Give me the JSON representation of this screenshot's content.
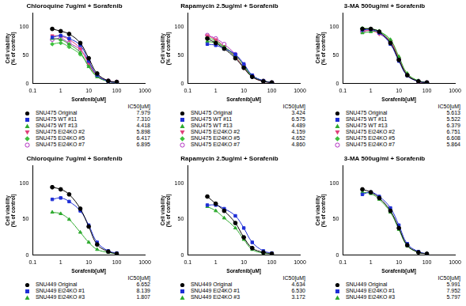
{
  "chart_data": [
    {
      "type": "line",
      "title": "Chloroquine 7ug/ml + Sorafenib",
      "x_label": "Sorafenib[uM]",
      "y_label": "Cell viability (% of control)",
      "log": "x",
      "grid": false,
      "legend": "bottom",
      "legend_title": "IC50[uM]",
      "line_style": "solid",
      "xlim": [
        0.1,
        1000
      ],
      "xticks": [
        0.1,
        1,
        10,
        100,
        1000
      ],
      "ylim": [
        0,
        125
      ],
      "yticks": [
        0,
        50,
        100
      ],
      "x": [
        0.5,
        1,
        2,
        5,
        10,
        20,
        50,
        100
      ],
      "series": [
        {
          "name": "SNU475 Original",
          "color": "#000000",
          "marker": "circle",
          "values": [
            97,
            93,
            88,
            72,
            45,
            18,
            5,
            3
          ],
          "ic50": 7.979
        },
        {
          "name": "SNU475 WT #11",
          "color": "#1f2fd6",
          "marker": "square",
          "values": [
            82,
            85,
            80,
            68,
            40,
            15,
            4,
            2
          ],
          "ic50": 7.31,
          "ic50_label": "7.310"
        },
        {
          "name": "SNU475 WT #13",
          "color": "#2eaa2e",
          "marker": "triangle",
          "values": [
            80,
            78,
            70,
            55,
            30,
            12,
            4,
            2
          ],
          "ic50": 4.418
        },
        {
          "name": "SNU475 Ei24KO #2",
          "color": "#e0407a",
          "marker": "triangle-down",
          "values": [
            85,
            84,
            78,
            62,
            35,
            14,
            4,
            2
          ],
          "ic50": 5.898
        },
        {
          "name": "SNU475 Ei24KO #5",
          "color": "#3cc03c",
          "marker": "diamond",
          "values": [
            70,
            72,
            65,
            52,
            32,
            13,
            4,
            2
          ],
          "ic50": 6.417
        },
        {
          "name": "SNU475 Ei24KO #7",
          "color": "#b030c0",
          "marker": "open-circle",
          "values": [
            78,
            80,
            72,
            60,
            38,
            15,
            5,
            3
          ],
          "ic50": 6.895
        }
      ]
    },
    {
      "type": "line",
      "title": "Rapamycin 2.5ug/ml + Sorafenib",
      "x_label": "Sorafenib[uM]",
      "y_label": "Cell viability (% of control)",
      "log": "x",
      "grid": false,
      "legend": "bottom",
      "legend_title": "IC50[uM]",
      "line_style": "solid",
      "xlim": [
        0.1,
        1000
      ],
      "xticks": [
        0.1,
        1,
        10,
        100,
        1000
      ],
      "ylim": [
        0,
        125
      ],
      "yticks": [
        0,
        50,
        100
      ],
      "x": [
        0.5,
        1,
        2,
        5,
        10,
        20,
        50,
        100
      ],
      "series": [
        {
          "name": "SNU475 Original",
          "color": "#000000",
          "marker": "circle",
          "values": [
            80,
            72,
            62,
            45,
            28,
            12,
            4,
            2
          ],
          "ic50": 3.424
        },
        {
          "name": "SNU475 WT #11",
          "color": "#1f2fd6",
          "marker": "square",
          "values": [
            70,
            68,
            62,
            52,
            35,
            15,
            5,
            2
          ],
          "ic50": 6.575
        },
        {
          "name": "SNU475 WT #13",
          "color": "#2eaa2e",
          "marker": "triangle",
          "values": [
            75,
            72,
            65,
            50,
            33,
            14,
            5,
            2
          ],
          "ic50": 4.489
        },
        {
          "name": "SNU475 Ei24KO #2",
          "color": "#e0407a",
          "marker": "triangle-down",
          "values": [
            85,
            78,
            66,
            48,
            28,
            12,
            4,
            2
          ],
          "ic50": 4.159
        },
        {
          "name": "SNU475 Ei24KO #5",
          "color": "#3cc03c",
          "marker": "diamond",
          "values": [
            82,
            76,
            65,
            47,
            30,
            13,
            5,
            2
          ],
          "ic50": 4.652
        },
        {
          "name": "SNU475 Ei24KO #7",
          "color": "#b030c0",
          "marker": "open-circle",
          "values": [
            86,
            80,
            70,
            52,
            33,
            14,
            5,
            2
          ],
          "ic50": 4.86,
          "ic50_label": "4.860"
        }
      ]
    },
    {
      "type": "line",
      "title": "3-MA 500ug/ml + Sorafenib",
      "x_label": "Sorafenib[uM]",
      "y_label": "Cell viability (% of control)",
      "log": "x",
      "grid": false,
      "legend": "bottom",
      "legend_title": "IC50[uM]",
      "line_style": "solid",
      "xlim": [
        0.1,
        1000
      ],
      "xticks": [
        0.1,
        1,
        10,
        100,
        1000
      ],
      "ylim": [
        0,
        125
      ],
      "yticks": [
        0,
        50,
        100
      ],
      "x": [
        0.5,
        1,
        2,
        5,
        10,
        20,
        50,
        100
      ],
      "series": [
        {
          "name": "SNU475 Original",
          "color": "#000000",
          "marker": "circle",
          "values": [
            97,
            97,
            92,
            72,
            42,
            15,
            4,
            2
          ],
          "ic50": 5.613
        },
        {
          "name": "SNU475 WT #11",
          "color": "#1f2fd6",
          "marker": "square",
          "values": [
            95,
            96,
            90,
            70,
            40,
            14,
            4,
            2
          ],
          "ic50": 5.522
        },
        {
          "name": "SNU475 WT #13",
          "color": "#2eaa2e",
          "marker": "triangle",
          "values": [
            90,
            92,
            92,
            78,
            48,
            18,
            5,
            2
          ],
          "ic50": 6.379
        },
        {
          "name": "SNU475 Ei24KO #2",
          "color": "#e0407a",
          "marker": "triangle-down",
          "values": [
            93,
            94,
            88,
            75,
            45,
            16,
            4,
            2
          ],
          "ic50": 6.751
        },
        {
          "name": "SNU475 Ei24KO #5",
          "color": "#3cc03c",
          "marker": "diamond",
          "values": [
            98,
            97,
            93,
            76,
            45,
            16,
            5,
            2
          ],
          "ic50": 6.608
        },
        {
          "name": "SNU475 Ei24KO #7",
          "color": "#b030c0",
          "marker": "open-circle",
          "values": [
            92,
            95,
            90,
            74,
            43,
            15,
            4,
            2
          ],
          "ic50": 5.864
        }
      ]
    },
    {
      "type": "line",
      "title": "Chloroquine 7ug/ml + Sorafenib",
      "x_label": "Sorafenib[uM]",
      "y_label": "Cell viability (% of control)",
      "log": "x",
      "grid": false,
      "legend": "bottom",
      "legend_title": "IC50[uM]",
      "line_style": "solid",
      "xlim": [
        0.1,
        1000
      ],
      "xticks": [
        0.1,
        1,
        10,
        100,
        1000
      ],
      "ylim": [
        0,
        125
      ],
      "yticks": [
        0,
        50,
        100
      ],
      "x": [
        0.5,
        1,
        2,
        5,
        10,
        20,
        50,
        100
      ],
      "series": [
        {
          "name": "SNU449 Original",
          "color": "#000000",
          "marker": "circle",
          "values": [
            95,
            92,
            85,
            65,
            40,
            15,
            5,
            2
          ],
          "ic50": 6.652
        },
        {
          "name": "SNU449 Ei24KO #1",
          "color": "#1f2fd6",
          "marker": "square",
          "values": [
            78,
            80,
            75,
            62,
            42,
            18,
            6,
            3
          ],
          "ic50": 8.139
        },
        {
          "name": "SNU449 Ei24KO #3",
          "color": "#2eaa2e",
          "marker": "triangle",
          "values": [
            60,
            58,
            50,
            32,
            18,
            8,
            4,
            2
          ],
          "ic50": 1.807
        }
      ]
    },
    {
      "type": "line",
      "title": "Rapamycin 2.5ug/ml + Sorafenib",
      "x_label": "Sorafenib[uM]",
      "y_label": "Cell viability (% of control)",
      "log": "x",
      "grid": false,
      "legend": "bottom",
      "legend_title": "IC50[uM]",
      "line_style": "solid",
      "xlim": [
        0.1,
        1000
      ],
      "xticks": [
        0.1,
        1,
        10,
        100,
        1000
      ],
      "ylim": [
        0,
        125
      ],
      "yticks": [
        0,
        50,
        100
      ],
      "x": [
        0.5,
        1,
        2,
        5,
        10,
        20,
        50,
        100
      ],
      "series": [
        {
          "name": "SNU449 Original",
          "color": "#000000",
          "marker": "circle",
          "values": [
            82,
            72,
            62,
            45,
            25,
            10,
            4,
            2
          ],
          "ic50": 4.634
        },
        {
          "name": "SNU449 Ei24KO #1",
          "color": "#1f2fd6",
          "marker": "square",
          "values": [
            70,
            70,
            65,
            55,
            38,
            18,
            6,
            3
          ],
          "ic50": 6.53,
          "ic50_label": "6.530"
        },
        {
          "name": "SNU449 Ei24KO #3",
          "color": "#2eaa2e",
          "marker": "triangle",
          "values": [
            68,
            62,
            52,
            38,
            22,
            8,
            3,
            2
          ],
          "ic50": 3.172
        }
      ]
    },
    {
      "type": "line",
      "title": "3-MA 500ug/ml + Sorafenib",
      "x_label": "Sorafenib[uM]",
      "y_label": "Cell viability (% of control)",
      "log": "x",
      "grid": false,
      "legend": "bottom",
      "legend_title": "IC50[uM]",
      "line_style": "solid",
      "xlim": [
        0.1,
        1000
      ],
      "xticks": [
        0.1,
        1,
        10,
        100,
        1000
      ],
      "ylim": [
        0,
        125
      ],
      "yticks": [
        0,
        50,
        100
      ],
      "x": [
        0.5,
        1,
        2,
        5,
        10,
        20,
        50,
        100
      ],
      "series": [
        {
          "name": "SNU449 Original",
          "color": "#000000",
          "marker": "circle",
          "values": [
            92,
            88,
            80,
            62,
            38,
            14,
            4,
            2
          ],
          "ic50": 5.991
        },
        {
          "name": "SNU449 Ei24KO #1",
          "color": "#1f2fd6",
          "marker": "square",
          "values": [
            85,
            88,
            82,
            66,
            42,
            16,
            5,
            2
          ],
          "ic50": 7.952
        },
        {
          "name": "SNU449 Ei24KO #3",
          "color": "#2eaa2e",
          "marker": "triangle",
          "values": [
            88,
            86,
            78,
            60,
            36,
            13,
            4,
            2
          ],
          "ic50": 5.797
        }
      ]
    }
  ]
}
